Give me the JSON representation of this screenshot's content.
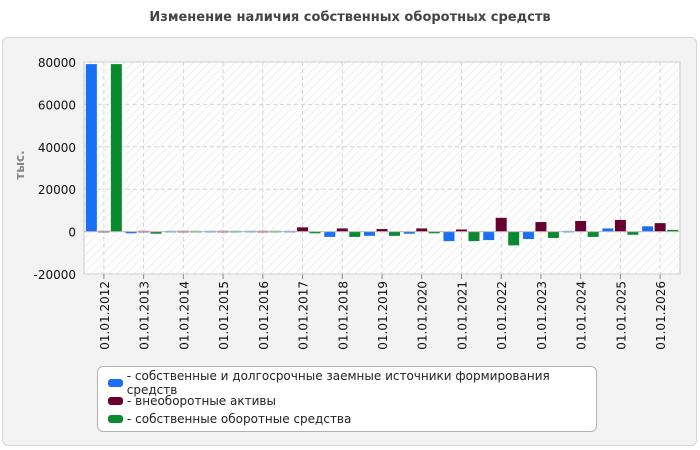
{
  "chart_data": {
    "type": "bar",
    "title": "Изменение наличия собственных оборотных средств",
    "ylabel": "тыс.",
    "xlabel": "",
    "ylim": [
      -20000,
      80000
    ],
    "yticks": [
      "-20000",
      "0",
      "20000",
      "40000",
      "60000",
      "80000"
    ],
    "grid": true,
    "legend_position": "bottom",
    "categories": [
      "01.01.2012",
      "01.01.2013",
      "01.01.2014",
      "01.01.2015",
      "01.01.2016",
      "01.01.2017",
      "01.01.2018",
      "01.01.2019",
      "01.01.2020",
      "01.01.2021",
      "01.01.2022",
      "01.01.2023",
      "01.01.2024",
      "01.01.2025",
      "01.01.2026"
    ],
    "series": [
      {
        "name": "собственные и долгосрочные заемные источники формирования средств",
        "color": "#1a6ff5",
        "values": [
          79000,
          -800,
          300,
          300,
          300,
          -700,
          -2500,
          -2000,
          -1000,
          -4500,
          -4000,
          -3500,
          600,
          1500,
          2500
        ]
      },
      {
        "name": "внеоборотные активы",
        "color": "#6a0030",
        "values": [
          300,
          600,
          300,
          300,
          300,
          2000,
          1500,
          1200,
          1500,
          1000,
          6500,
          4500,
          5000,
          5500,
          4000
        ]
      },
      {
        "name": "собственные оборотные средства",
        "color": "#0a8a2e",
        "values": [
          79000,
          -1000,
          300,
          300,
          300,
          -800,
          -2500,
          -2000,
          -800,
          -4500,
          -6500,
          -3000,
          -2500,
          -1500,
          800
        ]
      }
    ]
  }
}
